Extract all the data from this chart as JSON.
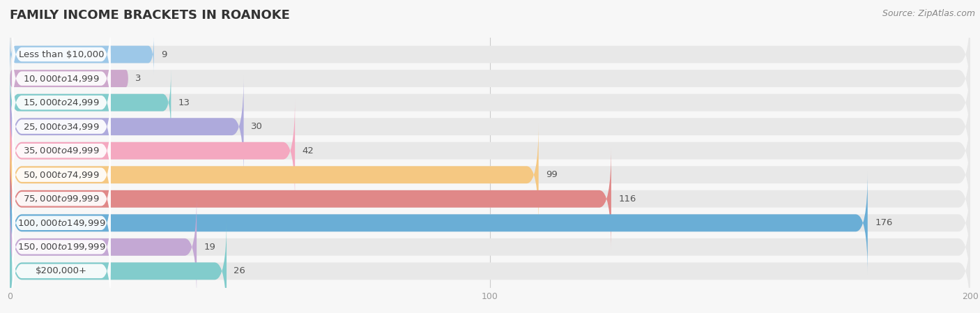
{
  "title": "FAMILY INCOME BRACKETS IN ROANOKE",
  "source": "Source: ZipAtlas.com",
  "categories": [
    "Less than $10,000",
    "$10,000 to $14,999",
    "$15,000 to $24,999",
    "$25,000 to $34,999",
    "$35,000 to $49,999",
    "$50,000 to $74,999",
    "$75,000 to $99,999",
    "$100,000 to $149,999",
    "$150,000 to $199,999",
    "$200,000+"
  ],
  "values": [
    9,
    3,
    13,
    30,
    42,
    99,
    116,
    176,
    19,
    26
  ],
  "bar_colors": [
    "#9DC8E8",
    "#CDA8CC",
    "#82CCCC",
    "#AEAADC",
    "#F4A8C0",
    "#F5C882",
    "#E08888",
    "#6AAED6",
    "#C4A8D4",
    "#82CCCC"
  ],
  "background_color": "#f7f7f7",
  "bar_bg_color": "#e8e8e8",
  "label_bg_color": "#ffffff",
  "xlim": [
    0,
    200
  ],
  "xticks": [
    0,
    100,
    200
  ],
  "title_fontsize": 13,
  "label_fontsize": 9.5,
  "value_fontsize": 9.5,
  "source_fontsize": 9
}
